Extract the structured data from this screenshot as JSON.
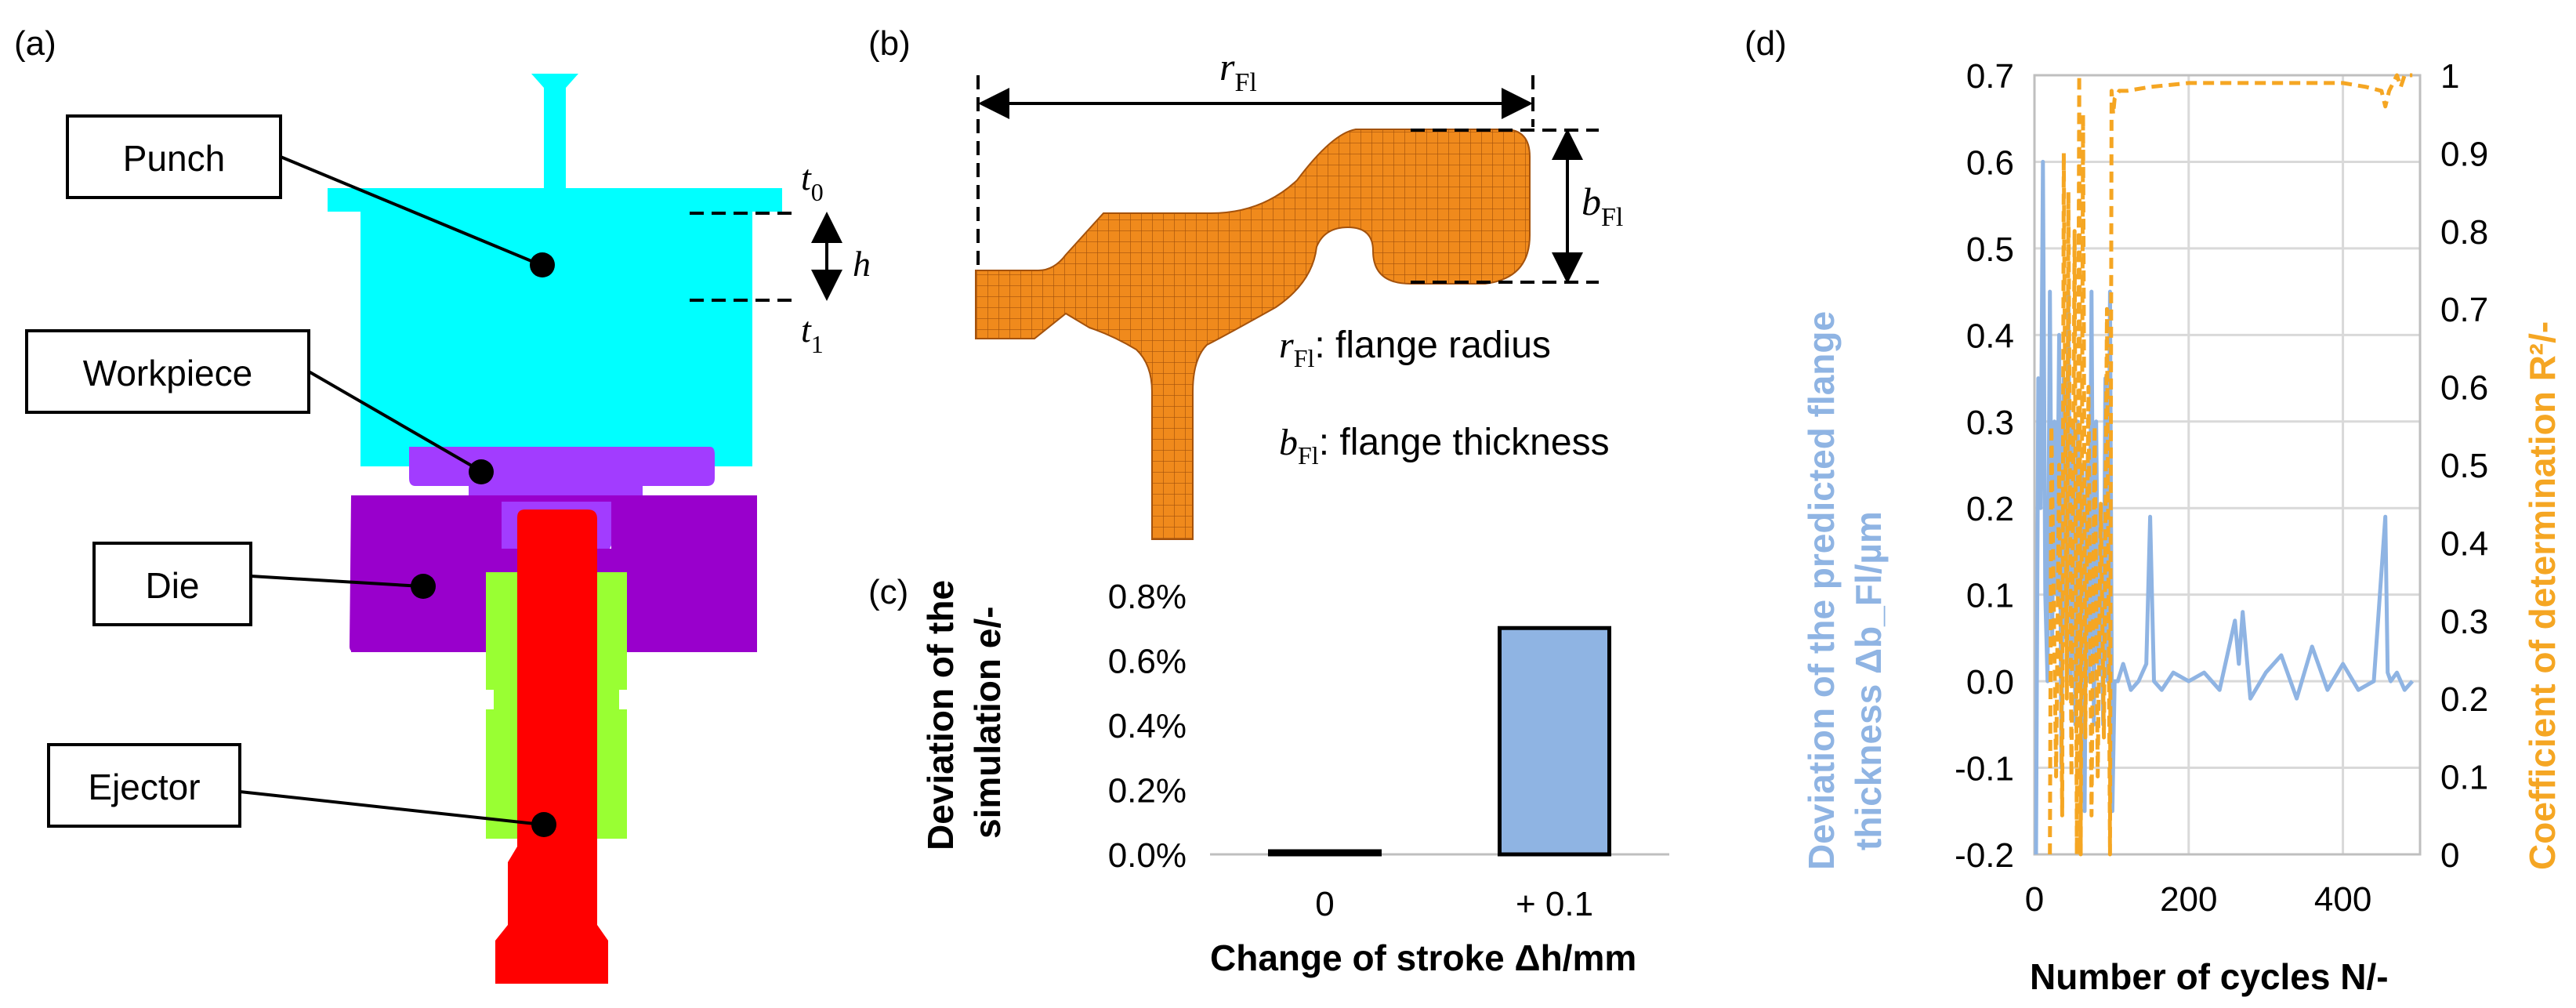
{
  "panels": {
    "a": {
      "label": "(a)",
      "parts": {
        "punch": "Punch",
        "workpiece": "Workpiece",
        "die": "Die",
        "ejector": "Ejector"
      },
      "symbols": {
        "t0_base": "t",
        "t0_sub": "0",
        "t1_base": "t",
        "t1_sub": "1",
        "h": "h"
      },
      "colors": {
        "punch": "#00ffff",
        "workpiece": "#a23cff",
        "die": "#9900cc",
        "ejector": "#ff0000",
        "ejector_sleeve": "#99ff33"
      }
    },
    "b": {
      "label": "(b)",
      "r_sym": "r",
      "r_sub": "Fl",
      "b_sym": "b",
      "b_sub": "Fl",
      "r_legend": ": flange radius",
      "b_legend": ": flange thickness",
      "mesh_color": "#f08a1c"
    },
    "c": {
      "label": "(c)"
    },
    "d": {
      "label": "(d)"
    }
  },
  "chart_data": [
    {
      "type": "bar",
      "panel": "c",
      "categories": [
        "0",
        "+ 0.1"
      ],
      "values": [
        0.0,
        0.7
      ],
      "unit": "%",
      "ylim": [
        0,
        0.8
      ],
      "yticks": [
        "0.0%",
        "0.2%",
        "0.4%",
        "0.6%",
        "0.8%"
      ],
      "ylabel_line1": "Deviation of the",
      "ylabel_line2": "simulation e/-",
      "xlabel": "Change of stroke Δh/mm",
      "bar_color": "#8fb4e3"
    },
    {
      "type": "line",
      "panel": "d",
      "xlim": [
        0,
        500
      ],
      "xticks": [
        "0",
        "200",
        "400"
      ],
      "xlabel": "Number of cycles N/-",
      "left_axis": {
        "ylim": [
          -0.2,
          0.7
        ],
        "yticks": [
          "-0.2",
          "-0.1",
          "0.0",
          "0.1",
          "0.2",
          "0.3",
          "0.4",
          "0.5",
          "0.6",
          "0.7"
        ],
        "label_line1": "Deviation of the predicted flange",
        "label_line2": "thickness Δb_Fl/µm",
        "color": "#8fb4e3"
      },
      "right_axis": {
        "ylim": [
          0,
          1
        ],
        "yticks": [
          "0",
          "0.1",
          "0.2",
          "0.3",
          "0.4",
          "0.5",
          "0.6",
          "0.7",
          "0.8",
          "0.9",
          "1"
        ],
        "label": "Coefficient of determination R²/-",
        "color": "#f5a623"
      },
      "series": [
        {
          "name": "Deviation of the predicted flange thickness",
          "axis": "left",
          "x": [
            2,
            5,
            8,
            11,
            14,
            17,
            20,
            23,
            26,
            29,
            32,
            35,
            38,
            41,
            44,
            47,
            50,
            53,
            56,
            59,
            62,
            65,
            68,
            71,
            74,
            77,
            80,
            83,
            86,
            89,
            92,
            95,
            98,
            101,
            104,
            108,
            115,
            125,
            135,
            145,
            150,
            155,
            165,
            180,
            200,
            220,
            240,
            260,
            265,
            270,
            280,
            300,
            320,
            340,
            360,
            380,
            400,
            420,
            440,
            455,
            458,
            462,
            470,
            480,
            490
          ],
          "y": [
            -0.2,
            0.35,
            0.2,
            0.6,
            0.1,
            0.0,
            0.45,
            0.05,
            0.3,
            0.1,
            0.4,
            -0.1,
            0.35,
            0.05,
            0.45,
            0.0,
            0.3,
            -0.05,
            0.3,
            0.0,
            0.25,
            -0.15,
            0.25,
            0.0,
            0.45,
            -0.05,
            0.3,
            0.02,
            0.2,
            -0.05,
            0.35,
            0.0,
            0.45,
            -0.15,
            0.0,
            0.0,
            0.02,
            -0.01,
            0.0,
            0.02,
            0.19,
            0.0,
            -0.01,
            0.01,
            0.0,
            0.01,
            -0.01,
            0.07,
            0.02,
            0.08,
            -0.02,
            0.01,
            0.03,
            -0.02,
            0.04,
            -0.01,
            0.02,
            -0.01,
            0.0,
            0.19,
            0.01,
            0.0,
            0.01,
            -0.01,
            0.0
          ]
        },
        {
          "name": "Coefficient of determination",
          "axis": "right",
          "x": [
            20,
            22,
            28,
            32,
            36,
            38,
            42,
            44,
            48,
            52,
            55,
            58,
            60,
            63,
            66,
            70,
            74,
            78,
            82,
            86,
            90,
            94,
            98,
            100,
            102,
            104,
            110,
            120,
            150,
            200,
            250,
            300,
            350,
            400,
            430,
            450,
            455,
            460,
            465,
            470,
            475,
            480,
            490
          ],
          "y": [
            0.0,
            0.55,
            0.1,
            0.5,
            0.05,
            0.9,
            0.2,
            0.85,
            0.1,
            0.8,
            0.0,
            1.0,
            0.0,
            0.95,
            0.15,
            0.6,
            0.05,
            0.55,
            0.1,
            0.45,
            0.15,
            0.7,
            0.0,
            0.98,
            0.95,
            0.97,
            0.98,
            0.98,
            0.985,
            0.99,
            0.99,
            0.99,
            0.99,
            0.99,
            0.985,
            0.98,
            0.96,
            0.98,
            0.99,
            1.0,
            0.985,
            1.0,
            1.0
          ]
        }
      ]
    }
  ]
}
